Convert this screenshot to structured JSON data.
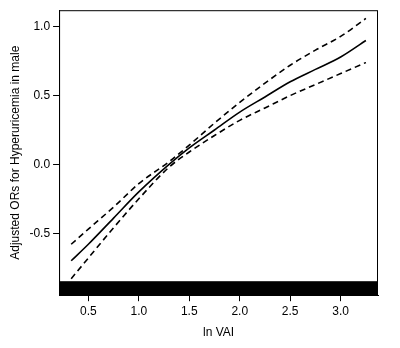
{
  "chart_data": {
    "type": "line",
    "x_label": "ln VAI",
    "y_label": "Adjusted ORs for Hyperuricemia in male",
    "x": [
      0.33,
      0.5,
      0.75,
      1.0,
      1.3,
      1.5,
      1.75,
      2.0,
      2.25,
      2.5,
      2.75,
      3.0,
      3.25
    ],
    "series": [
      {
        "color": "#000000",
        "line_style": "solid",
        "values": [
          -0.7,
          -0.58,
          -0.39,
          -0.2,
          0.0,
          0.12,
          0.25,
          0.38,
          0.49,
          0.6,
          0.69,
          0.78,
          0.9
        ]
      },
      {
        "color": "#000000",
        "line_style": "dashed",
        "values": [
          -0.58,
          -0.47,
          -0.31,
          -0.14,
          0.02,
          0.14,
          0.3,
          0.45,
          0.59,
          0.72,
          0.83,
          0.93,
          1.06
        ]
      },
      {
        "color": "#000000",
        "line_style": "dashed",
        "values": [
          -0.83,
          -0.68,
          -0.46,
          -0.25,
          -0.02,
          0.09,
          0.21,
          0.32,
          0.41,
          0.5,
          0.58,
          0.66,
          0.74
        ]
      }
    ],
    "xlim": [
      0.21,
      3.37
    ],
    "ylim": [
      -0.95,
      1.12
    ],
    "xticks": [
      0.5,
      {
        "value": 1.0,
        "label": "1.0"
      },
      1.5,
      {
        "value": 2.0,
        "label": "2.0"
      },
      2.5,
      {
        "value": 3.0,
        "label": "3.0"
      }
    ],
    "yticks": [
      -0.5,
      {
        "value": 0.0,
        "label": "0.0"
      },
      0.5,
      {
        "value": 1.0,
        "label": "1.0"
      }
    ],
    "grid": false
  }
}
